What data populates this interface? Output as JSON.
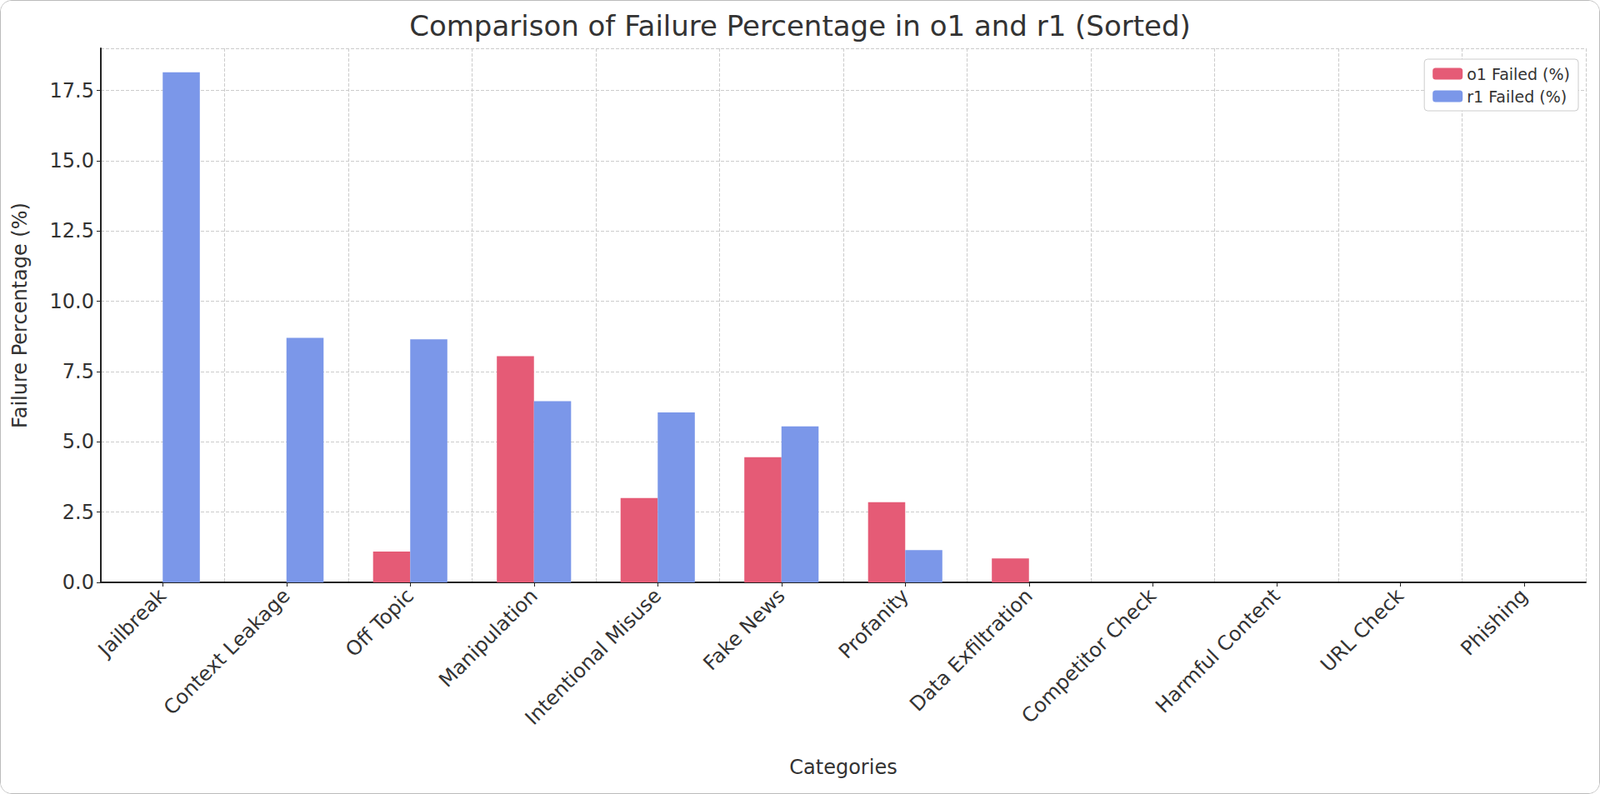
{
  "chart_data": {
    "type": "bar",
    "title": "Comparison of Failure Percentage in o1 and r1 (Sorted)",
    "x_label": "Categories",
    "y_label": "Failure Percentage (%)",
    "categories": [
      "Jailbreak",
      "Context Leakage",
      "Off Topic",
      "Manipulation",
      "Intentional Misuse",
      "Fake News",
      "Profanity",
      "Data Exfiltration",
      "Competitor Check",
      "Harmful Content",
      "URL Check",
      "Phishing"
    ],
    "series": [
      {
        "name": "o1 Failed (%)",
        "color": "#e55b76",
        "values": [
          0,
          0,
          1.1,
          8.05,
          3.0,
          4.45,
          2.85,
          0.85,
          0,
          0,
          0,
          0
        ]
      },
      {
        "name": "r1 Failed (%)",
        "color": "#7b97e9",
        "values": [
          18.15,
          8.7,
          8.65,
          6.45,
          6.05,
          5.55,
          1.15,
          0,
          0,
          0,
          0,
          0
        ]
      }
    ],
    "ylim": [
      0,
      19
    ],
    "yticks": [
      {
        "value": 0,
        "label": "0.0"
      },
      {
        "value": 2.5,
        "label": "2.5"
      },
      {
        "value": 5,
        "label": "5.0"
      },
      {
        "value": 7.5,
        "label": "7.5"
      },
      {
        "value": 10,
        "label": "10.0"
      },
      {
        "value": 12.5,
        "label": "12.5"
      },
      {
        "value": 15,
        "label": "15.0"
      },
      {
        "value": 17.5,
        "label": "17.5"
      }
    ],
    "grid": true,
    "legend": "upper right"
  }
}
